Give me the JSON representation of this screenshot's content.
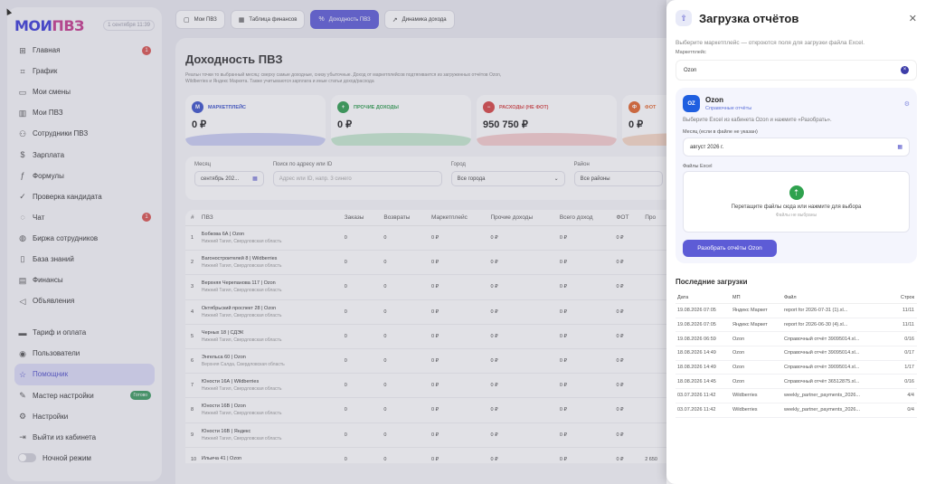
{
  "sidebar": {
    "logo": {
      "part1": "МОИ",
      "part2": "ПВЗ"
    },
    "date": "1 сентября 11:39",
    "items": [
      {
        "label": "Главная",
        "icon": "grid-icon",
        "badge": "1"
      },
      {
        "label": "График",
        "icon": "chart-icon"
      },
      {
        "label": "Мои смены",
        "icon": "calendar-icon"
      },
      {
        "label": "Мои ПВЗ",
        "icon": "building-icon"
      },
      {
        "label": "Сотрудники ПВЗ",
        "icon": "users-icon"
      },
      {
        "label": "Зарплата",
        "icon": "dollar-icon"
      },
      {
        "label": "Формулы",
        "icon": "formula-icon"
      },
      {
        "label": "Проверка кандидата",
        "icon": "check-icon"
      },
      {
        "label": "Чат",
        "icon": "chat-icon",
        "badge": "1"
      },
      {
        "label": "Биржа сотрудников",
        "icon": "globe-icon"
      },
      {
        "label": "База знаний",
        "icon": "book-icon"
      },
      {
        "label": "Финансы",
        "icon": "wallet-icon"
      },
      {
        "label": "Объявления",
        "icon": "megaphone-icon"
      }
    ],
    "items2": [
      {
        "label": "Тариф и оплата",
        "icon": "card-icon"
      },
      {
        "label": "Пользователи",
        "icon": "user-icon"
      },
      {
        "label": "Помощник",
        "icon": "star-icon",
        "active": true
      },
      {
        "label": "Мастер настройки",
        "icon": "wand-icon",
        "pill": "Готово"
      },
      {
        "label": "Настройки",
        "icon": "gear-icon"
      },
      {
        "label": "Выйти из кабинета",
        "icon": "logout-icon"
      }
    ],
    "night_mode": "Ночной режим"
  },
  "tabs": [
    {
      "label": "Мои ПВЗ",
      "icon": "box-icon"
    },
    {
      "label": "Таблица финансов",
      "icon": "table-icon"
    },
    {
      "label": "Доходность ПВЗ",
      "icon": "percent-icon",
      "active": true
    },
    {
      "label": "Динамика дохода",
      "icon": "trend-icon"
    }
  ],
  "main": {
    "title": "Доходность ПВЗ",
    "description": "Реальн точки то выбранный месяц: сверху самые доходные, снизу убыточные. Доход от маркетплейсов подтягивается из загруженных отчётов Ozon, Wildberries и Яндекс Маркета. Также учитываются зарплата и иные статьи доход/расхода",
    "kpis": [
      {
        "label": "МАРКЕТПЛЕЙС",
        "letter": "М",
        "value": "0 ₽",
        "color": "#3b52c9",
        "wave": "#c9cdf3"
      },
      {
        "label": "ПРОЧИЕ ДОХОДЫ",
        "letter": "+",
        "value": "0 ₽",
        "color": "#2f9d4f",
        "wave": "#c6e8cf"
      },
      {
        "label": "РАСХОДЫ (НЕ ФОТ)",
        "letter": "−",
        "value": "950 750 ₽",
        "color": "#d64545",
        "wave": "#f5cccc"
      },
      {
        "label": "ФОТ",
        "letter": "Ф",
        "value": "0 ₽",
        "color": "#e2652b",
        "wave": "#f7d8c4"
      }
    ],
    "filters": {
      "month_label": "Месяц",
      "month_value": "сентябрь 202...",
      "search_label": "Поиск по адресу или ID",
      "search_placeholder": "Адрес или ID, напр. 3 синего",
      "city_label": "Город",
      "city_value": "Все города",
      "district_label": "Район",
      "district_value": "Все районы"
    },
    "table": {
      "headers": [
        "#",
        "ПВЗ",
        "Заказы",
        "Возвраты",
        "Маркетплейс",
        "Прочие доходы",
        "Всего доход",
        "ФОТ",
        "Про"
      ],
      "rows": [
        {
          "n": "1",
          "name": "Бобкова 6А | Ozon",
          "city": "Нижний Тагил, Свердловская область",
          "orders": "0",
          "returns": "0",
          "mp": "0 ₽",
          "other": "0 ₽",
          "total": "0 ₽",
          "fot": "0 ₽",
          "pro": ""
        },
        {
          "n": "2",
          "name": "Вагоностроителей 8 | Wildberries",
          "city": "Нижний Тагил, Свердловская область",
          "orders": "0",
          "returns": "0",
          "mp": "0 ₽",
          "other": "0 ₽",
          "total": "0 ₽",
          "fot": "0 ₽",
          "pro": ""
        },
        {
          "n": "3",
          "name": "Верхняя Черепанова 117 | Ozon",
          "city": "Нижний Тагил, Свердловская область",
          "orders": "0",
          "returns": "0",
          "mp": "0 ₽",
          "other": "0 ₽",
          "total": "0 ₽",
          "fot": "0 ₽",
          "pro": ""
        },
        {
          "n": "4",
          "name": "Октябрьский проспект 28 | Ozon",
          "city": "Нижний Тагил, Свердловская область",
          "orders": "0",
          "returns": "0",
          "mp": "0 ₽",
          "other": "0 ₽",
          "total": "0 ₽",
          "fot": "0 ₽",
          "pro": ""
        },
        {
          "n": "5",
          "name": "Черных 18 | СДЭК",
          "city": "Нижний Тагил, Свердловская область",
          "orders": "0",
          "returns": "0",
          "mp": "0 ₽",
          "other": "0 ₽",
          "total": "0 ₽",
          "fot": "0 ₽",
          "pro": ""
        },
        {
          "n": "6",
          "name": "Энгельса 60 | Ozon",
          "city": "Верхняя Салда, Свердловская область",
          "orders": "0",
          "returns": "0",
          "mp": "0 ₽",
          "other": "0 ₽",
          "total": "0 ₽",
          "fot": "0 ₽",
          "pro": ""
        },
        {
          "n": "7",
          "name": "Юности 16А | Wildberries",
          "city": "Нижний Тагил, Свердловская область",
          "orders": "0",
          "returns": "0",
          "mp": "0 ₽",
          "other": "0 ₽",
          "total": "0 ₽",
          "fot": "0 ₽",
          "pro": ""
        },
        {
          "n": "8",
          "name": "Юности 16В | Ozon",
          "city": "Нижний Тагил, Свердловская область",
          "orders": "0",
          "returns": "0",
          "mp": "0 ₽",
          "other": "0 ₽",
          "total": "0 ₽",
          "fot": "0 ₽",
          "pro": ""
        },
        {
          "n": "9",
          "name": "Юности 16В | Яндекс",
          "city": "Нижний Тагил, Свердловская область",
          "orders": "0",
          "returns": "0",
          "mp": "0 ₽",
          "other": "0 ₽",
          "total": "0 ₽",
          "fot": "0 ₽",
          "pro": ""
        },
        {
          "n": "10",
          "name": "Ильича 41 | Ozon",
          "city": "",
          "orders": "0",
          "returns": "0",
          "mp": "0 ₽",
          "other": "0 ₽",
          "total": "0 ₽",
          "fot": "0 ₽",
          "pro": "2 650"
        }
      ]
    }
  },
  "drawer": {
    "title": "Загрузка отчётов",
    "hint": "Выберите маркетплейс — откроются поля для загрузки файла Excel.",
    "mp_label": "Маркетплейс",
    "mp_value": "Ozon",
    "card": {
      "badge": "OZ",
      "title": "Ozon",
      "subtitle": "Справочные отчёты",
      "text": "Выберите Excel из кабинета Ozon и нажмите «Разобрать».",
      "month_label": "Месяц (если в файле не указан)",
      "month_value": "август 2026 г.",
      "files_label": "Файлы Excel",
      "drop_text": "Перетащите файлы сюда или нажмите для выбора",
      "drop_sub": "Файлы не выбраны",
      "button": "Разобрать отчёты Ozon"
    },
    "recent_title": "Последние загрузки",
    "recent_headers": [
      "Дата",
      "МП",
      "Файл",
      "Строк"
    ],
    "recent": [
      {
        "date": "19.08.2026 07:05",
        "mp": "Яндекс Маркет",
        "file": "report for 2026-07-31 (1).xl...",
        "rows": "11/11"
      },
      {
        "date": "19.08.2026 07:05",
        "mp": "Яндекс Маркет",
        "file": "report for 2026-06-30 (4).xl...",
        "rows": "11/11"
      },
      {
        "date": "19.08.2026 06:59",
        "mp": "Ozon",
        "file": "Справочный отчёт 39095014.xl...",
        "rows": "0/16"
      },
      {
        "date": "18.08.2026 14:49",
        "mp": "Ozon",
        "file": "Справочный отчёт 39095014.xl...",
        "rows": "0/17"
      },
      {
        "date": "18.08.2026 14:49",
        "mp": "Ozon",
        "file": "Справочный отчёт 39095014.xl...",
        "rows": "1/17"
      },
      {
        "date": "18.08.2026 14:45",
        "mp": "Ozon",
        "file": "Справочный отчёт 36512875.xl...",
        "rows": "0/16"
      },
      {
        "date": "03.07.2026 11:42",
        "mp": "Wildberries",
        "file": "weekly_partner_payments_2026...",
        "rows": "4/4"
      },
      {
        "date": "03.07.2026 11:42",
        "mp": "Wildberries",
        "file": "weekly_partner_payments_2026...",
        "rows": "0/4"
      }
    ]
  }
}
